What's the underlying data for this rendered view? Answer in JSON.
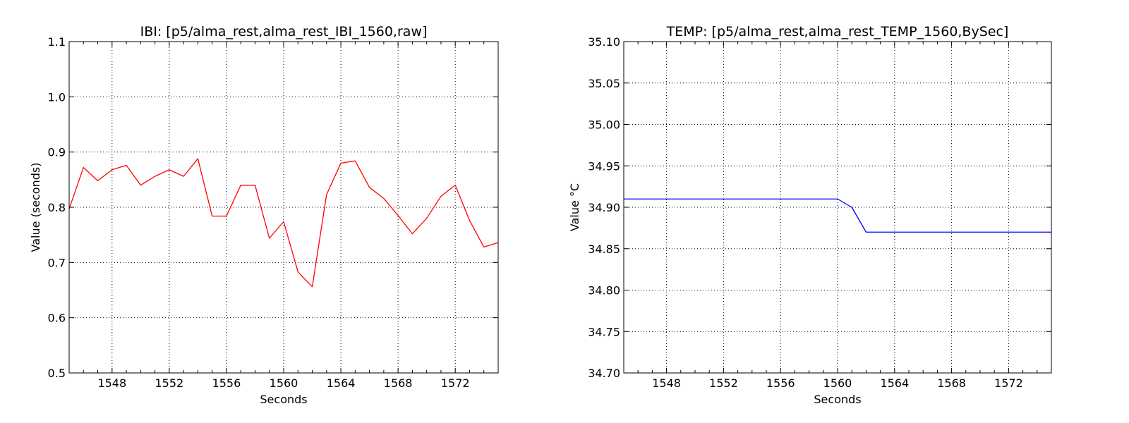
{
  "chart_data": [
    {
      "type": "line",
      "title": "IBI: [p5/alma_rest,alma_rest_IBI_1560,raw]",
      "xlabel": "Seconds",
      "ylabel": "Value (seconds)",
      "xlim": [
        1545,
        1575
      ],
      "ylim": [
        0.5,
        1.1
      ],
      "xticks": [
        1548,
        1552,
        1556,
        1560,
        1564,
        1568,
        1572
      ],
      "yticks": [
        0.5,
        0.6,
        0.7,
        0.8,
        0.9,
        1.0,
        1.1
      ],
      "ytick_decimals": 1,
      "grid": true,
      "legend": "none",
      "series": [
        {
          "color": "#ff0000",
          "x": [
            1545,
            1546,
            1547,
            1548,
            1549,
            1550,
            1551,
            1552,
            1553,
            1554,
            1555,
            1556,
            1557,
            1558,
            1559,
            1560,
            1561,
            1562,
            1563,
            1564,
            1565,
            1566,
            1567,
            1568,
            1569,
            1570,
            1571,
            1572,
            1573,
            1574,
            1575
          ],
          "y": [
            0.797,
            0.872,
            0.848,
            0.868,
            0.876,
            0.84,
            0.856,
            0.868,
            0.856,
            0.888,
            0.784,
            0.784,
            0.84,
            0.84,
            0.744,
            0.774,
            0.683,
            0.656,
            0.823,
            0.88,
            0.884,
            0.836,
            0.816,
            0.785,
            0.752,
            0.78,
            0.82,
            0.84,
            0.776,
            0.728,
            0.736
          ]
        }
      ]
    },
    {
      "type": "line",
      "title": "TEMP: [p5/alma_rest,alma_rest_TEMP_1560,BySec]",
      "xlabel": "Seconds",
      "ylabel": "Value °C",
      "xlim": [
        1545,
        1575
      ],
      "ylim": [
        34.7,
        35.1
      ],
      "xticks": [
        1548,
        1552,
        1556,
        1560,
        1564,
        1568,
        1572
      ],
      "yticks": [
        34.7,
        34.75,
        34.8,
        34.85,
        34.9,
        34.95,
        35.0,
        35.05,
        35.1
      ],
      "ytick_decimals": 2,
      "grid": true,
      "legend": "none",
      "series": [
        {
          "color": "#0000ff",
          "x": [
            1545,
            1560,
            1561,
            1562,
            1575
          ],
          "y": [
            34.91,
            34.91,
            34.9,
            34.87,
            34.87
          ]
        }
      ]
    }
  ]
}
